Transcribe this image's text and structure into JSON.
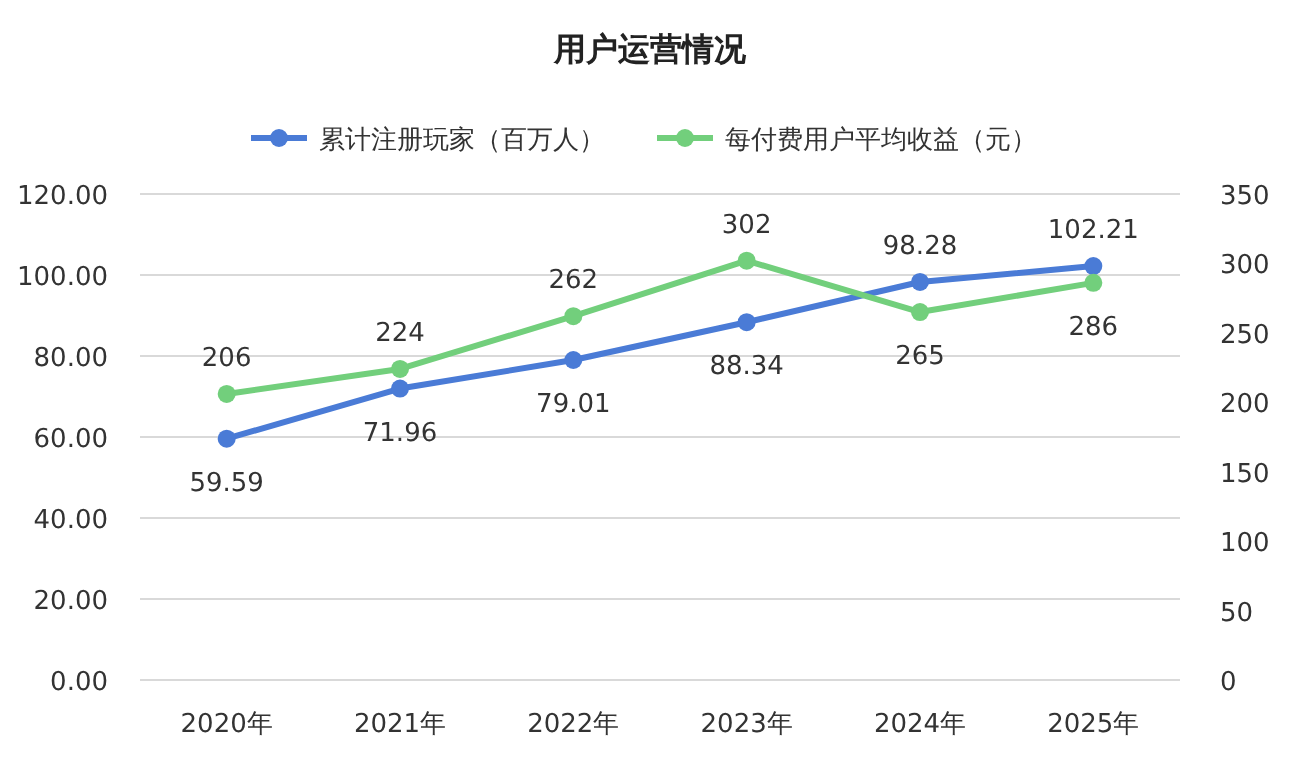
{
  "chart_data": {
    "type": "line",
    "title": "用户运营情况",
    "categories": [
      "2020年",
      "2021年",
      "2022年",
      "2023年",
      "2024年",
      "2025年"
    ],
    "series": [
      {
        "name": "累计注册玩家（百万人）",
        "color": "#4a7bd6",
        "values": [
          59.59,
          71.96,
          79.01,
          88.34,
          98.28,
          102.21
        ]
      },
      {
        "name": "每付费用户平均收益（元）",
        "color": "#72cf7c",
        "values": [
          206,
          224,
          262,
          302,
          265,
          286
        ],
        "axis": "y2"
      }
    ],
    "ylim": [
      0,
      120
    ],
    "yticks": [
      {
        "value": 0,
        "label": "0.00"
      },
      {
        "value": 20,
        "label": "20.00"
      },
      {
        "value": 40,
        "label": "40.00"
      },
      {
        "value": 60,
        "label": "60.00"
      },
      {
        "value": 80,
        "label": "80.00"
      },
      {
        "value": 100,
        "label": "100.00"
      },
      {
        "value": 120,
        "label": "120.00"
      }
    ],
    "y2lim": [
      0,
      350
    ],
    "y2ticks": [
      0,
      50,
      100,
      150,
      200,
      250,
      300,
      350
    ],
    "data_labels": true,
    "legend": "top",
    "grid": "y",
    "marker": "circle",
    "line_style": "solid"
  }
}
